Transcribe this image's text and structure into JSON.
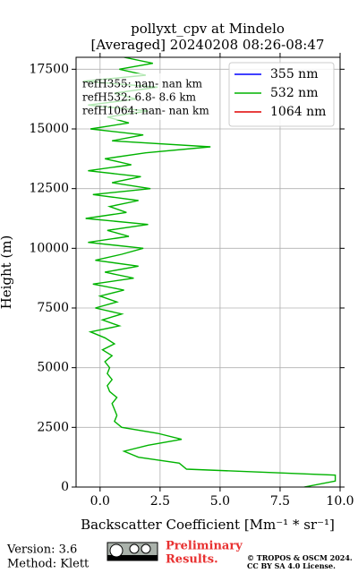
{
  "chart_data": {
    "type": "profile",
    "title": [
      "pollyxt_cpv at Mindelo",
      "[Averaged] 20240208 08:26-08:47"
    ],
    "xlabel": "Backscatter Coefficient [Mm⁻¹ * sr⁻¹]",
    "ylabel": "Height (m)",
    "xlim": [
      -1,
      10
    ],
    "ylim": [
      0,
      18000
    ],
    "xticks": [
      {
        "value": 0,
        "label": "0.0"
      },
      {
        "value": 2.5,
        "label": "2.5"
      },
      {
        "value": 5,
        "label": "5.0"
      },
      {
        "value": 7.5,
        "label": "7.5"
      },
      {
        "value": 10,
        "label": "10.0"
      }
    ],
    "yticks": [
      0,
      2500,
      5000,
      7500,
      10000,
      12500,
      15000,
      17500
    ],
    "grid": true,
    "legend": "upper right",
    "y": [
      0,
      250,
      500,
      750,
      1000,
      1250,
      1500,
      1750,
      2000,
      2250,
      2500,
      2750,
      3000,
      3250,
      3500,
      3750,
      4000,
      4250,
      4500,
      4750,
      5000,
      5250,
      5500,
      5750,
      6000,
      6250,
      6500,
      6750,
      7000,
      7250,
      7500,
      7750,
      8000,
      8250,
      8500,
      8750,
      9000,
      9250,
      9500,
      9750,
      10000,
      10250,
      10500,
      10750,
      11000,
      11250,
      11500,
      11750,
      12000,
      12250,
      12500,
      12750,
      13000,
      13250,
      13500,
      13750,
      14000,
      14250,
      14500,
      14750,
      15000,
      15250,
      15500,
      15750,
      16000,
      16250,
      16500,
      16750,
      17000,
      17250,
      17500,
      17750,
      18000
    ],
    "series": [
      {
        "name": "355 nm",
        "color": "#0000ff",
        "values": [
          null,
          null,
          null,
          null,
          null,
          null,
          null,
          null,
          null,
          null,
          null,
          null,
          null,
          null,
          null,
          null,
          null,
          null,
          null,
          null,
          null,
          null,
          null,
          null,
          null,
          null,
          null,
          null,
          null,
          null,
          null,
          null,
          null,
          null,
          null,
          null,
          null,
          null,
          null,
          null,
          null,
          null,
          null,
          null,
          null,
          null,
          null,
          null,
          null,
          null,
          null,
          null,
          null,
          null,
          null,
          null,
          null,
          null,
          null,
          null,
          null,
          null,
          null,
          null,
          null,
          null,
          null,
          null,
          null,
          null,
          null,
          null,
          null
        ]
      },
      {
        "name": "532 nm",
        "color": "#00b300",
        "values": [
          8.5,
          9.8,
          9.8,
          3.6,
          3.3,
          1.6,
          1.0,
          2.0,
          3.4,
          2.4,
          0.9,
          0.6,
          0.7,
          0.6,
          0.5,
          0.7,
          0.4,
          0.3,
          0.5,
          0.3,
          0.4,
          0.2,
          0.5,
          0.1,
          0.6,
          0.2,
          -0.4,
          0.8,
          0.1,
          0.9,
          -0.2,
          0.7,
          0.0,
          1.0,
          -0.3,
          1.4,
          0.2,
          1.6,
          -0.2,
          0.9,
          1.8,
          -0.5,
          1.2,
          0.3,
          2.0,
          -0.6,
          1.1,
          0.4,
          1.6,
          -0.3,
          2.1,
          0.5,
          1.7,
          -0.5,
          1.3,
          0.2,
          1.9,
          4.6,
          0.5,
          1.8,
          -0.4,
          1.2,
          0.3,
          2.0,
          -0.5,
          1.5,
          0.6,
          2.4,
          -0.7,
          1.9,
          0.8,
          2.2,
          1.0
        ]
      },
      {
        "name": "1064 nm",
        "color": "#e00000",
        "values": [
          null,
          null,
          null,
          null,
          null,
          null,
          null,
          null,
          null,
          null,
          null,
          null,
          null,
          null,
          null,
          null,
          null,
          null,
          null,
          null,
          null,
          null,
          null,
          null,
          null,
          null,
          null,
          null,
          null,
          null,
          null,
          null,
          null,
          null,
          null,
          null,
          null,
          null,
          null,
          null,
          null,
          null,
          null,
          null,
          null,
          null,
          null,
          null,
          null,
          null,
          null,
          null,
          null,
          null,
          null,
          null,
          null,
          null,
          null,
          null,
          null,
          null,
          null,
          null,
          null,
          null,
          null,
          null,
          null,
          null,
          null,
          null,
          null
        ]
      }
    ],
    "annotations": [
      "refH355:  nan- nan km",
      "refH532:  6.8- 8.6 km",
      "refH1064:  nan- nan km"
    ]
  },
  "footer": {
    "version": "Version: 3.6",
    "method": "Method: Klett",
    "notice": [
      "Preliminary",
      "Results."
    ],
    "license": [
      "© TROPOS & OSCM 2024.",
      "CC BY SA 4.0 License."
    ]
  }
}
